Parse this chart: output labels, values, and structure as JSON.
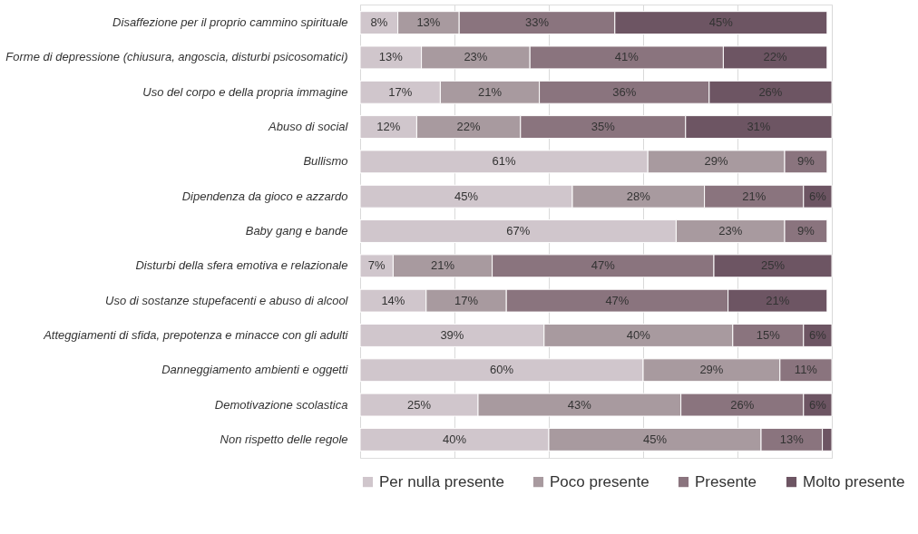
{
  "chart_data": {
    "type": "bar",
    "orientation": "horizontal",
    "stacked": true,
    "categories": [
      "Disaffezione per il proprio cammino spirituale",
      "Forme di depressione (chiusura, angoscia, disturbi psicosomatici)",
      "Uso del corpo e della propria immagine",
      "Abuso di social",
      "Bullismo",
      "Dipendenza da gioco e azzardo",
      "Baby gang e bande",
      "Disturbi della sfera emotiva e relazionale",
      "Uso di sostanze stupefacenti e abuso di alcool",
      "Atteggiamenti di sfida, prepotenza e minacce con gli adulti",
      "Danneggiamento ambienti e oggetti",
      "Demotivazione scolastica",
      "Non rispetto delle regole"
    ],
    "series": [
      {
        "name": "Per nulla presente",
        "color": "#d0c6cc",
        "values": [
          8,
          13,
          17,
          12,
          61,
          45,
          67,
          7,
          14,
          39,
          60,
          25,
          40
        ],
        "value_labels": [
          "8%",
          "13%",
          "17%",
          "12%",
          "61%",
          "45%",
          "67%",
          "7%",
          "14%",
          "39%",
          "60%",
          "25%",
          "40%"
        ]
      },
      {
        "name": "Poco presente",
        "color": "#a89a9f",
        "values": [
          13,
          23,
          21,
          22,
          29,
          28,
          23,
          21,
          17,
          40,
          29,
          43,
          45
        ],
        "value_labels": [
          "13%",
          "23%",
          "21%",
          "22%",
          "29%",
          "28%",
          "23%",
          "21%",
          "17%",
          "40%",
          "29%",
          "43%",
          "45%"
        ]
      },
      {
        "name": "Presente",
        "color": "#8a747e",
        "values": [
          33,
          41,
          36,
          35,
          9,
          21,
          9,
          47,
          47,
          15,
          11,
          26,
          13
        ],
        "value_labels": [
          "33%",
          "41%",
          "36%",
          "35%",
          "9%",
          "21%",
          "9%",
          "47%",
          "47%",
          "15%",
          "11%",
          "26%",
          "13%"
        ]
      },
      {
        "name": "Molto presente",
        "color": "#6d5563",
        "values": [
          45,
          22,
          26,
          31,
          null,
          6,
          null,
          25,
          21,
          6,
          null,
          6,
          2
        ],
        "value_labels": [
          "45%",
          "22%",
          "26%",
          "31%",
          null,
          "6%",
          null,
          "25%",
          "21%",
          "6%",
          null,
          "6%",
          null
        ]
      }
    ],
    "xlim": [
      0,
      100
    ],
    "xticks": [
      {
        "value": 0,
        "label": null
      },
      {
        "value": 20,
        "label": null
      },
      {
        "value": 40,
        "label": null
      },
      {
        "value": 60,
        "label": null
      },
      {
        "value": 80,
        "label": null
      },
      {
        "value": 100,
        "label": null
      }
    ],
    "grid": "x",
    "tick_labels": false,
    "legend": "bottom"
  }
}
